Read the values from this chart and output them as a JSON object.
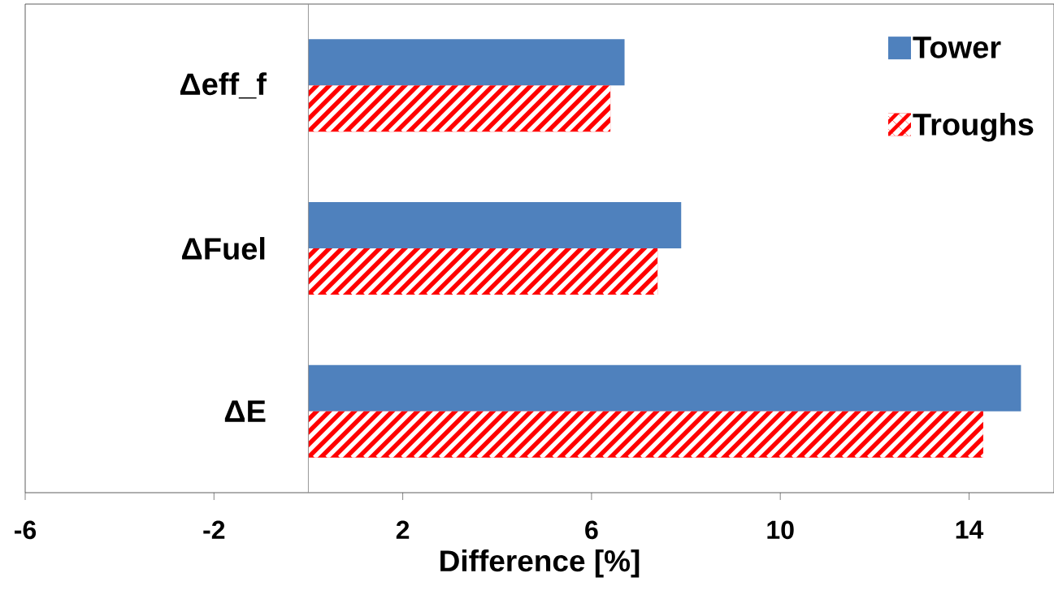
{
  "chart_data": {
    "type": "bar",
    "orientation": "horizontal",
    "xlabel": "Difference [%]",
    "categories": [
      "Δeff_f",
      "ΔFuel",
      "ΔE"
    ],
    "series": [
      {
        "name": "Tower",
        "color": "#4f81bd",
        "values": [
          6.7,
          7.9,
          15.1
        ]
      },
      {
        "name": "Troughs",
        "color": "#ff0000",
        "values": [
          6.4,
          7.4,
          14.3
        ]
      }
    ],
    "xlim": [
      -6,
      15.8
    ],
    "xticks": [
      -6,
      -2,
      2,
      6,
      10,
      14
    ],
    "grid": false,
    "legend": "top right"
  }
}
